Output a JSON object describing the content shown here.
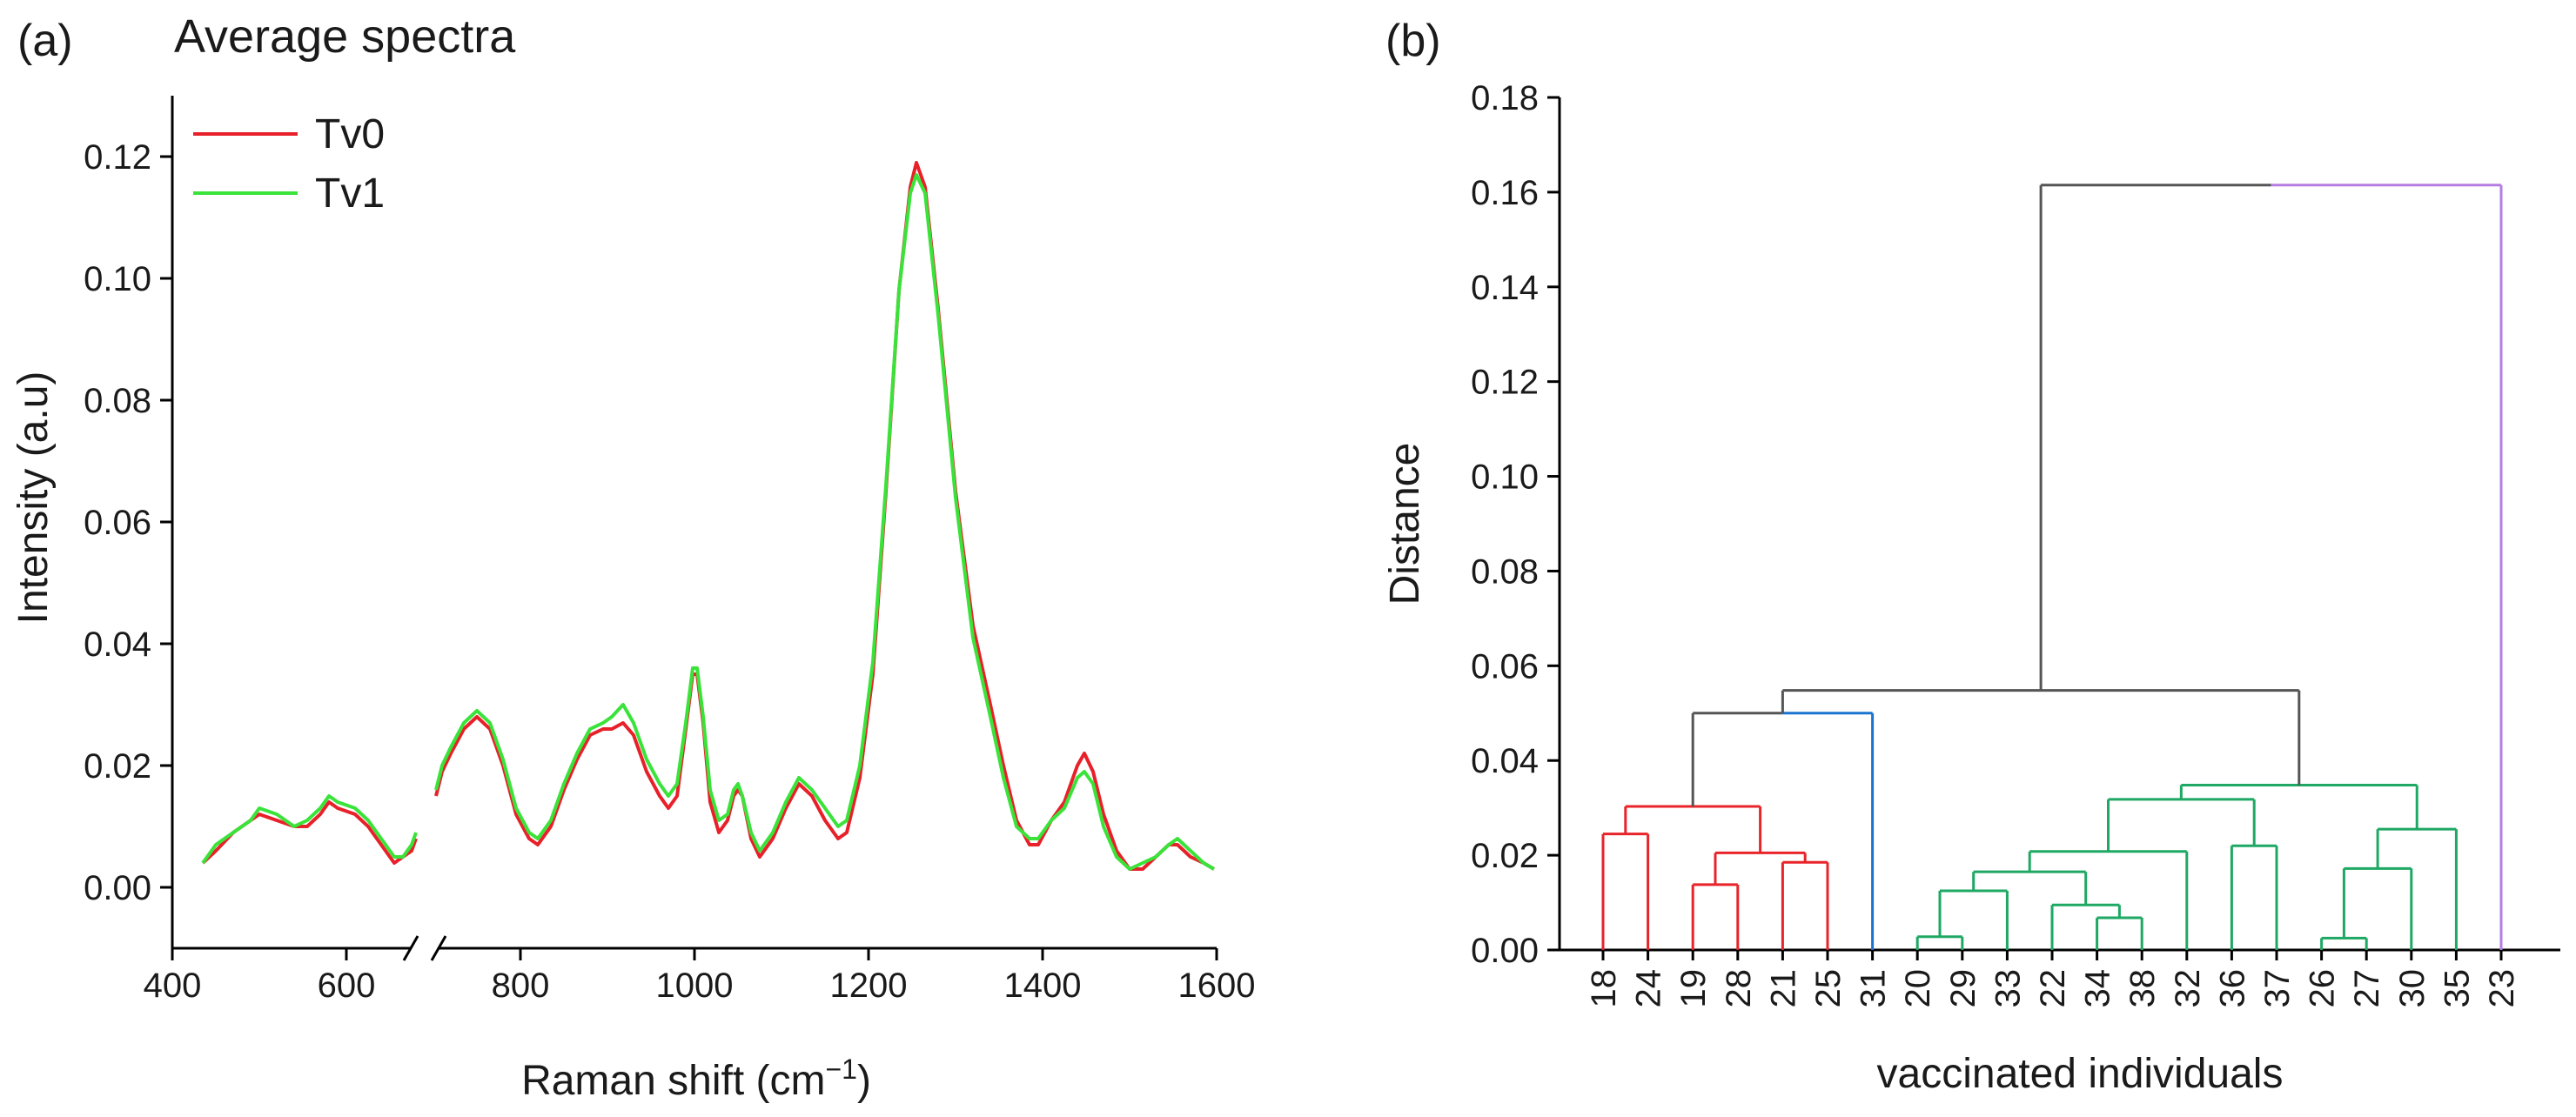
{
  "panel_a_label": "(a)",
  "panel_b_label": "(b)",
  "chart_data": [
    {
      "type": "line",
      "title": "Average spectra",
      "xlabel": "Raman shift (cm",
      "xlabel_sup": "−1",
      "xlabel_close": ")",
      "ylabel": "Intensity (a.u)",
      "xlim": [
        400,
        1600
      ],
      "ylim": [
        -0.01,
        0.13
      ],
      "x_break": [
        680,
        700
      ],
      "xticks": [
        400,
        600,
        800,
        1000,
        1200,
        1400,
        1600
      ],
      "xtick_labels": [
        "400",
        "600",
        "800",
        "1000",
        "1200",
        "1400",
        "1600"
      ],
      "yticks": [
        0.0,
        0.02,
        0.04,
        0.06,
        0.08,
        0.1,
        0.12
      ],
      "ytick_labels": [
        "0.00",
        "0.02",
        "0.04",
        "0.06",
        "0.08",
        "0.10",
        "0.12"
      ],
      "legend_position": "top-left",
      "series": [
        {
          "name": "Tv0",
          "color": "#e8202a",
          "points": [
            [
              435,
              0.004
            ],
            [
              450,
              0.006
            ],
            [
              470,
              0.009
            ],
            [
              490,
              0.011
            ],
            [
              500,
              0.012
            ],
            [
              520,
              0.011
            ],
            [
              540,
              0.01
            ],
            [
              555,
              0.01
            ],
            [
              570,
              0.012
            ],
            [
              580,
              0.014
            ],
            [
              590,
              0.013
            ],
            [
              610,
              0.012
            ],
            [
              625,
              0.01
            ],
            [
              640,
              0.007
            ],
            [
              655,
              0.004
            ],
            [
              665,
              0.005
            ],
            [
              675,
              0.006
            ],
            [
              680,
              0.008
            ],
            null,
            [
              703,
              0.015
            ],
            [
              710,
              0.019
            ],
            [
              720,
              0.022
            ],
            [
              735,
              0.026
            ],
            [
              750,
              0.028
            ],
            [
              765,
              0.026
            ],
            [
              780,
              0.02
            ],
            [
              795,
              0.012
            ],
            [
              810,
              0.008
            ],
            [
              820,
              0.007
            ],
            [
              835,
              0.01
            ],
            [
              850,
              0.016
            ],
            [
              865,
              0.021
            ],
            [
              880,
              0.025
            ],
            [
              895,
              0.026
            ],
            [
              905,
              0.026
            ],
            [
              918,
              0.027
            ],
            [
              930,
              0.025
            ],
            [
              945,
              0.019
            ],
            [
              960,
              0.015
            ],
            [
              970,
              0.013
            ],
            [
              980,
              0.015
            ],
            [
              990,
              0.026
            ],
            [
              998,
              0.035
            ],
            [
              1003,
              0.035
            ],
            [
              1010,
              0.027
            ],
            [
              1018,
              0.014
            ],
            [
              1028,
              0.009
            ],
            [
              1038,
              0.011
            ],
            [
              1045,
              0.015
            ],
            [
              1050,
              0.016
            ],
            [
              1055,
              0.015
            ],
            [
              1065,
              0.008
            ],
            [
              1075,
              0.005
            ],
            [
              1090,
              0.008
            ],
            [
              1105,
              0.013
            ],
            [
              1120,
              0.017
            ],
            [
              1135,
              0.015
            ],
            [
              1150,
              0.011
            ],
            [
              1165,
              0.008
            ],
            [
              1175,
              0.009
            ],
            [
              1190,
              0.018
            ],
            [
              1205,
              0.035
            ],
            [
              1220,
              0.065
            ],
            [
              1235,
              0.098
            ],
            [
              1248,
              0.115
            ],
            [
              1255,
              0.119
            ],
            [
              1265,
              0.115
            ],
            [
              1280,
              0.095
            ],
            [
              1300,
              0.065
            ],
            [
              1320,
              0.043
            ],
            [
              1340,
              0.03
            ],
            [
              1355,
              0.02
            ],
            [
              1370,
              0.011
            ],
            [
              1385,
              0.007
            ],
            [
              1395,
              0.007
            ],
            [
              1410,
              0.011
            ],
            [
              1425,
              0.014
            ],
            [
              1440,
              0.02
            ],
            [
              1448,
              0.022
            ],
            [
              1458,
              0.019
            ],
            [
              1470,
              0.012
            ],
            [
              1485,
              0.006
            ],
            [
              1500,
              0.003
            ],
            [
              1515,
              0.003
            ],
            [
              1530,
              0.005
            ],
            [
              1545,
              0.007
            ],
            [
              1555,
              0.007
            ],
            [
              1570,
              0.005
            ],
            [
              1585,
              0.004
            ],
            [
              1597,
              0.003
            ]
          ]
        },
        {
          "name": "Tv1",
          "color": "#3ae33a",
          "points": [
            [
              435,
              0.004
            ],
            [
              450,
              0.007
            ],
            [
              470,
              0.009
            ],
            [
              490,
              0.011
            ],
            [
              500,
              0.013
            ],
            [
              520,
              0.012
            ],
            [
              540,
              0.01
            ],
            [
              555,
              0.011
            ],
            [
              570,
              0.013
            ],
            [
              580,
              0.015
            ],
            [
              590,
              0.014
            ],
            [
              610,
              0.013
            ],
            [
              625,
              0.011
            ],
            [
              640,
              0.008
            ],
            [
              655,
              0.005
            ],
            [
              665,
              0.005
            ],
            [
              675,
              0.007
            ],
            [
              680,
              0.009
            ],
            null,
            [
              703,
              0.016
            ],
            [
              710,
              0.02
            ],
            [
              720,
              0.023
            ],
            [
              735,
              0.027
            ],
            [
              750,
              0.029
            ],
            [
              765,
              0.027
            ],
            [
              780,
              0.021
            ],
            [
              795,
              0.013
            ],
            [
              810,
              0.009
            ],
            [
              820,
              0.008
            ],
            [
              835,
              0.011
            ],
            [
              850,
              0.017
            ],
            [
              865,
              0.022
            ],
            [
              880,
              0.026
            ],
            [
              895,
              0.027
            ],
            [
              905,
              0.028
            ],
            [
              918,
              0.03
            ],
            [
              930,
              0.027
            ],
            [
              945,
              0.021
            ],
            [
              960,
              0.017
            ],
            [
              970,
              0.015
            ],
            [
              980,
              0.017
            ],
            [
              990,
              0.027
            ],
            [
              998,
              0.036
            ],
            [
              1003,
              0.036
            ],
            [
              1010,
              0.028
            ],
            [
              1018,
              0.016
            ],
            [
              1028,
              0.011
            ],
            [
              1038,
              0.012
            ],
            [
              1045,
              0.016
            ],
            [
              1050,
              0.017
            ],
            [
              1055,
              0.015
            ],
            [
              1065,
              0.009
            ],
            [
              1075,
              0.006
            ],
            [
              1090,
              0.009
            ],
            [
              1105,
              0.014
            ],
            [
              1120,
              0.018
            ],
            [
              1135,
              0.016
            ],
            [
              1150,
              0.013
            ],
            [
              1165,
              0.01
            ],
            [
              1175,
              0.011
            ],
            [
              1190,
              0.02
            ],
            [
              1205,
              0.037
            ],
            [
              1220,
              0.066
            ],
            [
              1235,
              0.098
            ],
            [
              1248,
              0.114
            ],
            [
              1255,
              0.117
            ],
            [
              1265,
              0.114
            ],
            [
              1280,
              0.094
            ],
            [
              1300,
              0.064
            ],
            [
              1320,
              0.041
            ],
            [
              1340,
              0.028
            ],
            [
              1355,
              0.018
            ],
            [
              1370,
              0.01
            ],
            [
              1385,
              0.008
            ],
            [
              1395,
              0.008
            ],
            [
              1410,
              0.011
            ],
            [
              1425,
              0.013
            ],
            [
              1440,
              0.018
            ],
            [
              1448,
              0.019
            ],
            [
              1458,
              0.017
            ],
            [
              1470,
              0.01
            ],
            [
              1485,
              0.005
            ],
            [
              1500,
              0.003
            ],
            [
              1515,
              0.004
            ],
            [
              1530,
              0.005
            ],
            [
              1545,
              0.007
            ],
            [
              1555,
              0.008
            ],
            [
              1570,
              0.006
            ],
            [
              1585,
              0.004
            ],
            [
              1597,
              0.003
            ]
          ]
        }
      ]
    },
    {
      "type": "dendrogram",
      "xlabel": "vaccinated individuals",
      "ylabel": "Distance",
      "ylim": [
        0,
        0.18
      ],
      "yticks": [
        0.0,
        0.02,
        0.04,
        0.06,
        0.08,
        0.1,
        0.12,
        0.14,
        0.16,
        0.18
      ],
      "ytick_labels": [
        "0.00",
        "0.02",
        "0.04",
        "0.06",
        "0.08",
        "0.10",
        "0.12",
        "0.14",
        "0.16",
        "0.18"
      ],
      "leaves": [
        "18",
        "24",
        "19",
        "28",
        "21",
        "25",
        "31",
        "20",
        "29",
        "33",
        "22",
        "34",
        "38",
        "32",
        "36",
        "37",
        "26",
        "27",
        "30",
        "35",
        "23"
      ],
      "colors": {
        "red": "#e8242a",
        "blue": "#1a73d1",
        "green": "#1ea863",
        "purple": "#b57ee3",
        "gray": "#555555"
      },
      "merges": [
        {
          "l": "L18",
          "r": "L24",
          "h": 0.0245,
          "color": "red"
        },
        {
          "l": "L19",
          "r": "L28",
          "h": 0.0138,
          "color": "red"
        },
        {
          "l": "L21",
          "r": "L25",
          "h": 0.0185,
          "color": "red"
        },
        {
          "l": "N1",
          "r": "N2",
          "h": 0.0205,
          "color": "red"
        },
        {
          "l": "N0",
          "r": "N3",
          "h": 0.0303,
          "color": "red"
        },
        {
          "l": "N4",
          "r": "L31",
          "h": 0.05,
          "lcolor": "gray",
          "rcolor": "blue",
          "color": "blue"
        },
        {
          "l": "L20",
          "r": "L29",
          "h": 0.0028,
          "color": "green"
        },
        {
          "l": "N6",
          "r": "L33",
          "h": 0.0125,
          "color": "green"
        },
        {
          "l": "L34",
          "r": "L38",
          "h": 0.0068,
          "color": "green"
        },
        {
          "l": "L22",
          "r": "N8",
          "h": 0.0095,
          "color": "green"
        },
        {
          "l": "N7",
          "r": "N9",
          "h": 0.0165,
          "color": "green"
        },
        {
          "l": "N10",
          "r": "L32",
          "h": 0.0208,
          "color": "green"
        },
        {
          "l": "L36",
          "r": "L37",
          "h": 0.022,
          "color": "green"
        },
        {
          "l": "N11",
          "r": "N12",
          "h": 0.0318,
          "color": "green"
        },
        {
          "l": "L26",
          "r": "L27",
          "h": 0.0025,
          "color": "green"
        },
        {
          "l": "N14",
          "r": "L30",
          "h": 0.0172,
          "color": "green"
        },
        {
          "l": "N15",
          "r": "L35",
          "h": 0.0255,
          "color": "green"
        },
        {
          "l": "N13",
          "r": "N16",
          "h": 0.0348,
          "color": "green"
        },
        {
          "l": "N5",
          "r": "N17",
          "h": 0.0548,
          "color": "gray"
        },
        {
          "l": "N18",
          "r": "L23",
          "h": 0.1615,
          "lcolor": "gray",
          "rcolor": "purple",
          "color": "gray"
        }
      ]
    }
  ]
}
